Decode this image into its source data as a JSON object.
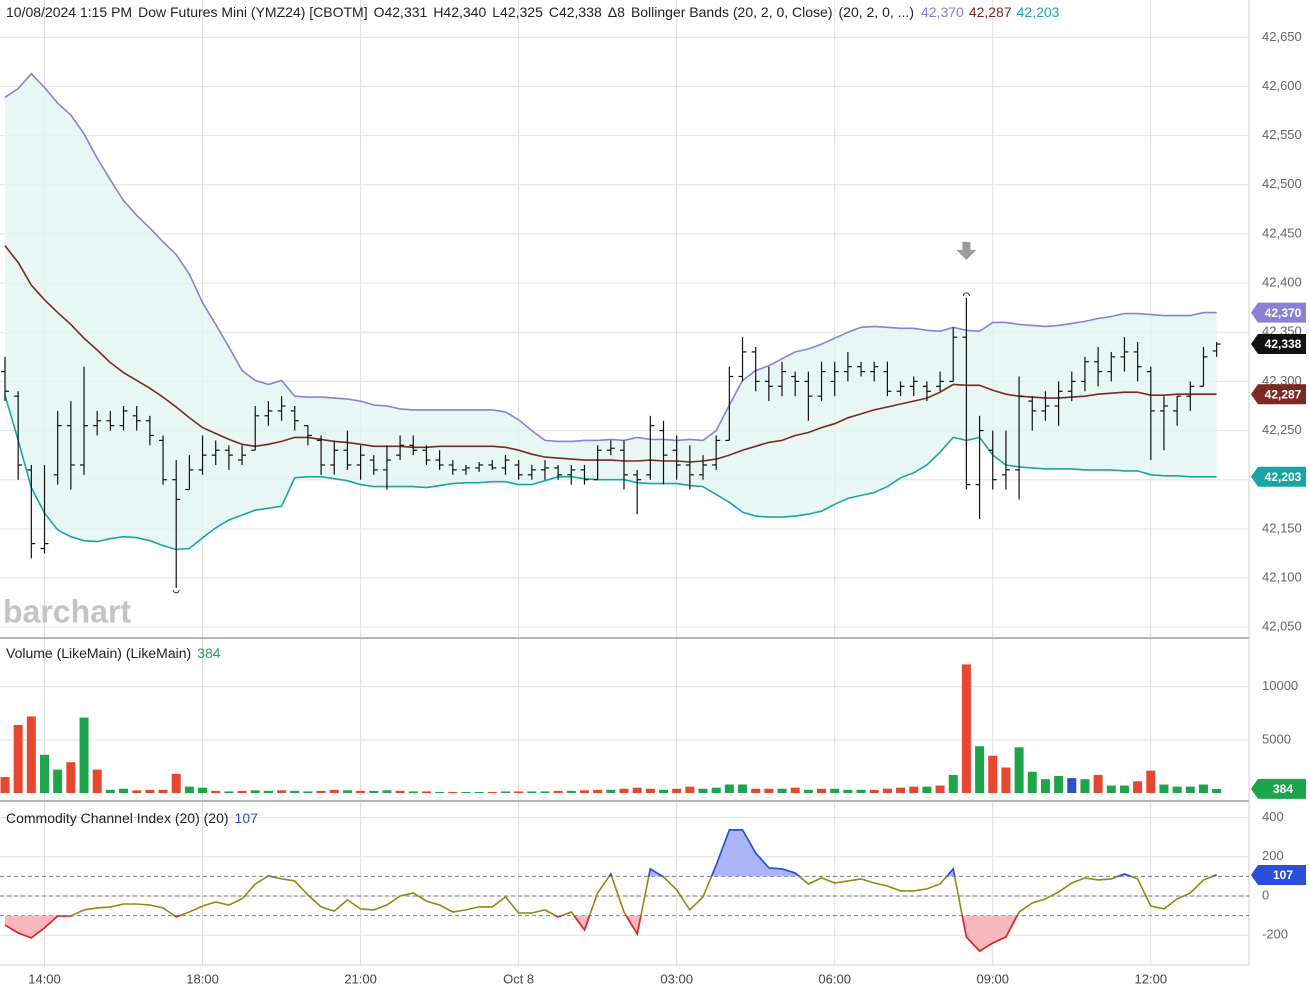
{
  "chart_data": [
    {
      "type": "ohlc",
      "header": [
        "10/08/2024 1:15 PM",
        "Dow Futures Mini (YMZ24) [CBOTM]",
        "O42,331",
        "H42,340",
        "L42,325",
        "C42,338",
        "Δ8",
        "Bollinger Bands (20, 2, 0, Close)",
        "(20, 2, 0, ...)"
      ],
      "watermark": "barchart",
      "categories": [
        null,
        null,
        null,
        "14:00",
        null,
        null,
        null,
        null,
        null,
        null,
        null,
        null,
        null,
        null,
        null,
        "18:00",
        null,
        null,
        null,
        null,
        null,
        null,
        null,
        null,
        null,
        null,
        null,
        "21:00",
        null,
        null,
        null,
        null,
        null,
        null,
        null,
        null,
        null,
        null,
        null,
        "Oct 8",
        null,
        null,
        null,
        null,
        null,
        null,
        null,
        null,
        null,
        null,
        null,
        "03:00",
        null,
        null,
        null,
        null,
        null,
        null,
        null,
        null,
        null,
        null,
        null,
        "06:00",
        null,
        null,
        null,
        null,
        null,
        null,
        null,
        null,
        null,
        null,
        null,
        "09:00",
        null,
        null,
        null,
        null,
        null,
        null,
        null,
        null,
        null,
        null,
        null,
        "12:00",
        null,
        null,
        null,
        null,
        null
      ],
      "open": [
        42310,
        42285,
        42210,
        42130,
        42205,
        42255,
        42215,
        42255,
        42260,
        42255,
        42265,
        42260,
        42240,
        42200,
        42190,
        42210,
        42225,
        42230,
        42220,
        42230,
        42265,
        42270,
        42270,
        42255,
        42240,
        42215,
        42230,
        42215,
        42220,
        42210,
        42225,
        42235,
        42230,
        42220,
        42215,
        42210,
        42212,
        42215,
        42212,
        42215,
        42205,
        42210,
        42212,
        42205,
        42210,
        42200,
        42230,
        42230,
        42205,
        42205,
        42250,
        42230,
        42215,
        42205,
        42215,
        42240,
        42305,
        42330,
        42300,
        42295,
        42305,
        42300,
        42285,
        42300,
        42310,
        42315,
        42310,
        42310,
        42290,
        42295,
        42295,
        42295,
        42300,
        42345,
        42195,
        42230,
        42205,
        42210,
        42280,
        42270,
        42275,
        42290,
        42300,
        42320,
        42310,
        42325,
        42330,
        42310,
        42270,
        42270,
        42285,
        42295,
        42331
      ],
      "high": [
        42325,
        42290,
        42215,
        42215,
        42270,
        42280,
        42315,
        42270,
        42270,
        42275,
        42275,
        42265,
        42245,
        42220,
        42225,
        42245,
        42240,
        42235,
        42235,
        42275,
        42280,
        42285,
        42275,
        42255,
        42245,
        42240,
        42250,
        42235,
        42225,
        42235,
        42245,
        42245,
        42235,
        42230,
        42220,
        42215,
        42218,
        42220,
        42225,
        42220,
        42215,
        42220,
        42215,
        42215,
        42215,
        42235,
        42240,
        42240,
        42210,
        42265,
        42260,
        42245,
        42235,
        42225,
        42245,
        42315,
        42345,
        42335,
        42315,
        42320,
        42310,
        42310,
        42320,
        42320,
        42330,
        42320,
        42320,
        42320,
        42300,
        42305,
        42300,
        42310,
        42355,
        42385,
        42265,
        42250,
        42250,
        42305,
        42285,
        42290,
        42300,
        42310,
        42325,
        42335,
        42330,
        42345,
        42340,
        42315,
        42285,
        42285,
        42300,
        42335,
        42340
      ],
      "low": [
        42280,
        42200,
        42120,
        42125,
        42195,
        42190,
        42205,
        42245,
        42250,
        42250,
        42250,
        42235,
        42195,
        42090,
        42190,
        42205,
        42215,
        42210,
        42215,
        42230,
        42255,
        42260,
        42250,
        42235,
        42205,
        42205,
        42210,
        42200,
        42205,
        42190,
        42220,
        42225,
        42215,
        42210,
        42205,
        42205,
        42208,
        42210,
        42205,
        42200,
        42200,
        42200,
        42200,
        42195,
        42195,
        42200,
        42225,
        42190,
        42165,
        42200,
        42195,
        42200,
        42190,
        42200,
        42210,
        42240,
        42300,
        42290,
        42280,
        42285,
        42285,
        42260,
        42280,
        42285,
        42300,
        42305,
        42300,
        42285,
        42285,
        42285,
        42280,
        42290,
        42300,
        42190,
        42160,
        42190,
        42190,
        42180,
        42250,
        42260,
        42255,
        42280,
        42290,
        42295,
        42300,
        42310,
        42300,
        42220,
        42230,
        42255,
        42270,
        42295,
        42325
      ],
      "close": [
        42290,
        42215,
        42135,
        42135,
        42255,
        42215,
        42255,
        42260,
        42255,
        42270,
        42260,
        42245,
        42200,
        42180,
        42210,
        42225,
        42230,
        42225,
        42225,
        42265,
        42270,
        42275,
        42260,
        42245,
        42215,
        42230,
        42215,
        42225,
        42210,
        42220,
        42235,
        42230,
        42220,
        42215,
        42210,
        42212,
        42215,
        42212,
        42220,
        42205,
        42210,
        42212,
        42205,
        42210,
        42200,
        42230,
        42232,
        42205,
        42200,
        42255,
        42225,
        42215,
        42205,
        42215,
        42240,
        42305,
        42330,
        42300,
        42295,
        42310,
        42300,
        42285,
        42310,
        42310,
        42315,
        42310,
        42315,
        42290,
        42295,
        42300,
        42290,
        42300,
        42345,
        42195,
        42250,
        42200,
        42210,
        42285,
        42270,
        42275,
        42290,
        42300,
        42320,
        42310,
        42325,
        42330,
        42315,
        42270,
        42275,
        42285,
        42295,
        42325,
        42338
      ],
      "color": "#111111",
      "last_close_label": "42,338",
      "band_fill": "#e2f4f1",
      "overlays": [
        {
          "color": "#8b80d6",
          "last_label": "42,370",
          "values": [
            42589,
            42598,
            42613,
            42599,
            42583,
            42571,
            42552,
            42527,
            42505,
            42484,
            42469,
            42456,
            42442,
            42429,
            42409,
            42380,
            42358,
            42335,
            42311,
            42301,
            42297,
            42301,
            42285,
            42284,
            42284,
            42283,
            42282,
            42280,
            42276,
            42275,
            42272,
            42271,
            42271,
            42271,
            42271,
            42271,
            42271,
            42271,
            42269,
            42261,
            42250,
            42240,
            42239,
            42239,
            42240,
            42240,
            42241,
            42240,
            42243,
            42241,
            42241,
            42240,
            42241,
            42240,
            42250,
            42276,
            42301,
            42311,
            42316,
            42323,
            42330,
            42333,
            42338,
            42344,
            42350,
            42355,
            42356,
            42355,
            42354,
            42354,
            42352,
            42351,
            42355,
            42352,
            42351,
            42360,
            42360,
            42358,
            42357,
            42356,
            42357,
            42359,
            42361,
            42364,
            42366,
            42369,
            42369,
            42368,
            42367,
            42367,
            42367,
            42370,
            42370
          ]
        },
        {
          "color": "#7a2a22",
          "last_label": "42,287",
          "values": [
            42438,
            42421,
            42398,
            42383,
            42370,
            42358,
            42344,
            42332,
            42319,
            42309,
            42301,
            42293,
            42284,
            42274,
            42263,
            42253,
            42247,
            42241,
            42236,
            42234,
            42236,
            42239,
            42243,
            42243,
            42241,
            42239,
            42238,
            42236,
            42234,
            42234,
            42234,
            42233,
            42233,
            42234,
            42234,
            42234,
            42234,
            42234,
            42233,
            42230,
            42226,
            42223,
            42222,
            42221,
            42220,
            42220,
            42220,
            42219,
            42219,
            42220,
            42219,
            42219,
            42218,
            42219,
            42221,
            42225,
            42230,
            42234,
            42238,
            42240,
            42245,
            42248,
            42253,
            42257,
            42263,
            42267,
            42271,
            42274,
            42277,
            42280,
            42283,
            42289,
            42297,
            42296,
            42296,
            42291,
            42287,
            42285,
            42284,
            42283,
            42283,
            42284,
            42285,
            42287,
            42288,
            42289,
            42289,
            42286,
            42286,
            42287,
            42287,
            42287,
            42287
          ]
        },
        {
          "color": "#1aa5a5",
          "last_label": "42,203",
          "values": [
            42286,
            42240,
            42192,
            42166,
            42149,
            42142,
            42138,
            42137,
            42140,
            42142,
            42141,
            42138,
            42133,
            42129,
            42130,
            42141,
            42151,
            42159,
            42164,
            42169,
            42171,
            42173,
            42202,
            42203,
            42203,
            42201,
            42199,
            42195,
            42193,
            42193,
            42193,
            42193,
            42192,
            42194,
            42196,
            42197,
            42197,
            42198,
            42198,
            42195,
            42195,
            42199,
            42203,
            42203,
            42201,
            42200,
            42200,
            42200,
            42197,
            42196,
            42196,
            42196,
            42194,
            42193,
            42185,
            42177,
            42167,
            42163,
            42162,
            42162,
            42163,
            42165,
            42168,
            42175,
            42181,
            42184,
            42187,
            42193,
            42202,
            42207,
            42215,
            42228,
            42243,
            42240,
            42243,
            42225,
            42215,
            42213,
            42212,
            42211,
            42211,
            42211,
            42210,
            42210,
            42210,
            42209,
            42209,
            42205,
            42204,
            42204,
            42203,
            42203,
            42203
          ]
        }
      ],
      "ylim": [
        42040,
        42688
      ],
      "yticks": [
        {
          "value": 42050,
          "label": "42,050"
        },
        {
          "value": 42100,
          "label": "42,100"
        },
        {
          "value": 42150,
          "label": "42,150"
        },
        {
          "value": 42200,
          "label": "42,200"
        },
        {
          "value": 42250,
          "label": "42,250"
        },
        {
          "value": 42300,
          "label": "42,300"
        },
        {
          "value": 42350,
          "label": "42,350"
        },
        {
          "value": 42400,
          "label": "42,400"
        },
        {
          "value": 42450,
          "label": "42,450"
        },
        {
          "value": 42500,
          "label": "42,500"
        },
        {
          "value": 42550,
          "label": "42,550"
        },
        {
          "value": 42600,
          "label": "42,600"
        },
        {
          "value": 42650,
          "label": "42,650"
        }
      ],
      "grid": true
    },
    {
      "type": "bar",
      "title": "Volume (LikeMain)  (LikeMain)",
      "values": [
        1500,
        6400,
        7200,
        3600,
        2200,
        2900,
        7100,
        2200,
        300,
        400,
        250,
        300,
        300,
        1800,
        600,
        500,
        200,
        150,
        200,
        250,
        200,
        250,
        200,
        150,
        200,
        300,
        250,
        200,
        200,
        250,
        200,
        150,
        150,
        100,
        100,
        100,
        100,
        100,
        150,
        150,
        150,
        150,
        200,
        200,
        250,
        300,
        300,
        400,
        500,
        400,
        300,
        400,
        600,
        400,
        500,
        800,
        800,
        400,
        400,
        400,
        500,
        300,
        400,
        400,
        300,
        300,
        300,
        400,
        500,
        600,
        600,
        700,
        1700,
        12100,
        4400,
        3500,
        2400,
        4300,
        2000,
        1300,
        1600,
        1400,
        1300,
        1700,
        700,
        700,
        1100,
        2100,
        800,
        600,
        600,
        800,
        384
      ],
      "colors": [
        "#e8472f",
        "#e8472f",
        "#e8472f",
        "#1ea54c",
        "#1ea54c",
        "#e8472f",
        "#1ea54c",
        "#e8472f",
        "#1ea54c",
        "#1ea54c",
        "#e8472f",
        "#e8472f",
        "#e8472f",
        "#e8472f",
        "#1ea54c",
        "#1ea54c",
        "#e8472f",
        "#1ea54c",
        "#e8472f",
        "#1ea54c",
        "#1ea54c",
        "#e8472f",
        "#1ea54c",
        "#1ea54c",
        "#e8472f",
        "#e8472f",
        "#1ea54c",
        "#e8472f",
        "#1ea54c",
        "#1ea54c",
        "#e8472f",
        "#1ea54c",
        "#e8472f",
        "#1ea54c",
        "#e8472f",
        "#1ea54c",
        "#1ea54c",
        "#e8472f",
        "#1ea54c",
        "#e8472f",
        "#1ea54c",
        "#1ea54c",
        "#e8472f",
        "#1ea54c",
        "#e8472f",
        "#e8472f",
        "#1ea54c",
        "#e8472f",
        "#e8472f",
        "#e8472f",
        "#1ea54c",
        "#e8472f",
        "#e8472f",
        "#1ea54c",
        "#1ea54c",
        "#1ea54c",
        "#1ea54c",
        "#e8472f",
        "#e8472f",
        "#1ea54c",
        "#e8472f",
        "#1ea54c",
        "#e8472f",
        "#1ea54c",
        "#1ea54c",
        "#1ea54c",
        "#e8472f",
        "#e8472f",
        "#e8472f",
        "#e8472f",
        "#1ea54c",
        "#e8472f",
        "#1ea54c",
        "#e8472f",
        "#1ea54c",
        "#e8472f",
        "#e8472f",
        "#1ea54c",
        "#1ea54c",
        "#1ea54c",
        "#1ea54c",
        "#2c4fcc",
        "#1ea54c",
        "#e8472f",
        "#1ea54c",
        "#1ea54c",
        "#e8472f",
        "#e8472f",
        "#1ea54c",
        "#1ea54c",
        "#1ea54c",
        "#1ea54c",
        "#1ea54c"
      ],
      "ylim": [
        0,
        14400
      ],
      "yticks": [
        5000,
        10000
      ],
      "grid": true
    },
    {
      "type": "line",
      "title": "Commodity Channel Index (20)  (20)",
      "values": [
        -148,
        -189,
        -214,
        -163,
        -102,
        -102,
        -71,
        -61,
        -56,
        -41,
        -41,
        -46,
        -61,
        -107,
        -82,
        -51,
        -31,
        -46,
        -15,
        61,
        102,
        87,
        77,
        5,
        -56,
        -77,
        -20,
        -66,
        -71,
        -46,
        0,
        15,
        -26,
        -46,
        -82,
        -71,
        -56,
        -56,
        -5,
        -87,
        -87,
        -71,
        -107,
        -82,
        -173,
        15,
        112,
        -82,
        -194,
        138,
        97,
        31,
        -71,
        -5,
        158,
        337,
        337,
        219,
        143,
        138,
        117,
        61,
        92,
        66,
        77,
        87,
        66,
        51,
        26,
        26,
        36,
        61,
        138,
        -209,
        -281,
        -240,
        -209,
        -82,
        -36,
        -15,
        20,
        66,
        92,
        82,
        87,
        112,
        87,
        -51,
        -66,
        -15,
        15,
        82,
        107
      ],
      "color": "#8c8c14",
      "above_color": "#2a4fd8",
      "below_color": "#e0222f",
      "above_fill": "#aab4f6",
      "below_fill": "#f6b7bd",
      "levels": [
        100,
        0,
        -100
      ],
      "ylim": [
        -352,
        474
      ],
      "yticks": [
        -200,
        0,
        200,
        400
      ],
      "grid": true
    }
  ]
}
